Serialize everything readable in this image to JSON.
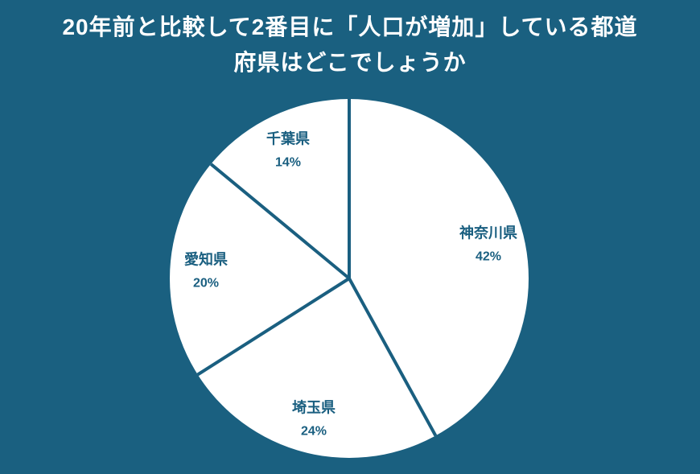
{
  "colors": {
    "background": "#1A6080",
    "accent": "#1A5F80",
    "pie_fill": "#ffffff",
    "title_color": "#ffffff"
  },
  "title_lines": [
    "20年前と比較して2番目に「人口が増加」している都道",
    "府県はどこでしょうか"
  ],
  "chart_data": {
    "type": "pie",
    "title": "20年前と比較して2番目に「人口が増加」している都道府県はどこでしょうか",
    "categories": [
      "神奈川県",
      "埼玉県",
      "愛知県",
      "千葉県"
    ],
    "values": [
      42,
      24,
      20,
      14
    ],
    "unit": "%",
    "labels": [
      "神奈川県 42%",
      "埼玉県 24%",
      "愛知県 20%",
      "千葉県 14%"
    ],
    "start_angle": "12-o-clock",
    "direction": "clockwise",
    "legend": "none",
    "slice_fill": "#ffffff",
    "divider_color": "#1A5F80"
  }
}
